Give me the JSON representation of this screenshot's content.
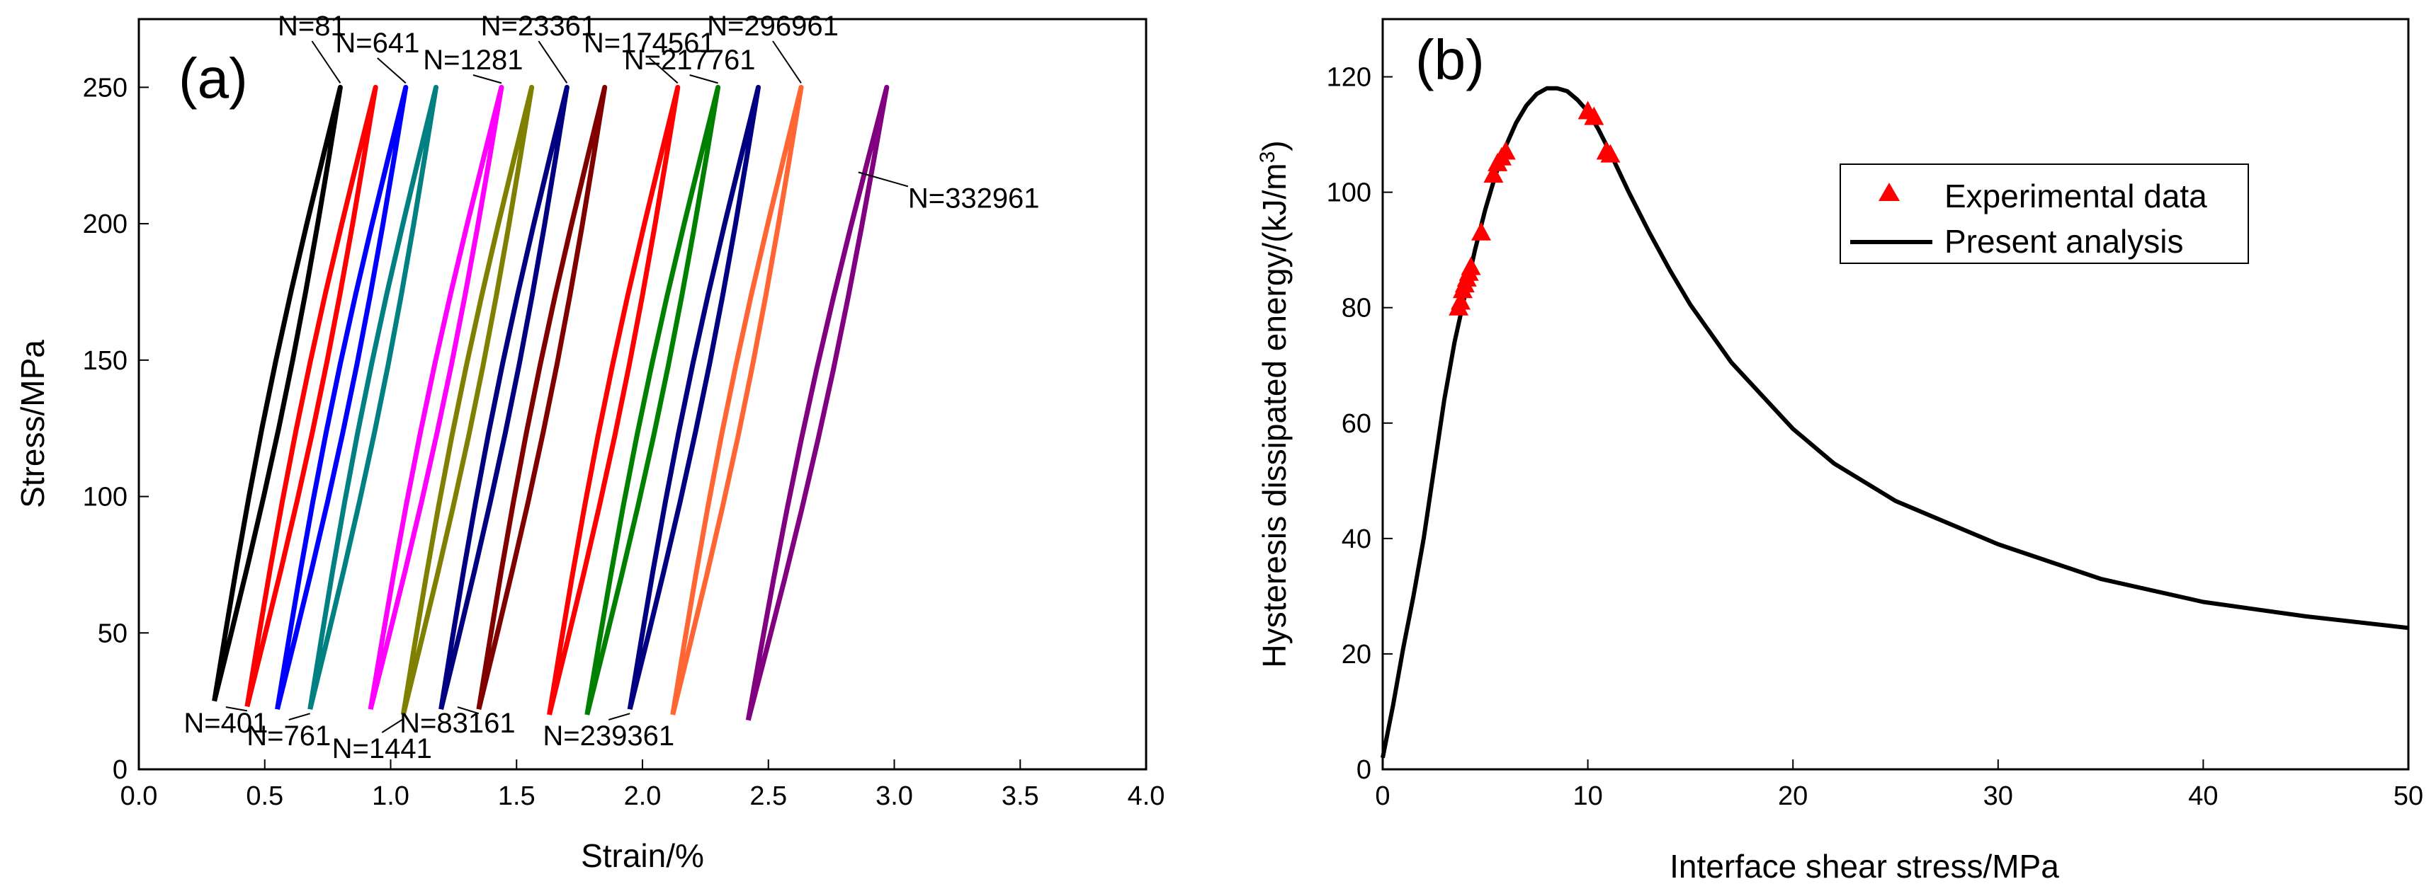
{
  "chart_data": [
    {
      "panel_label": "(a)",
      "type": "line",
      "xlabel": "Strain/%",
      "ylabel": "Stress/MPa",
      "xlim": [
        0.0,
        4.0
      ],
      "ylim": [
        0,
        275
      ],
      "xticks": [
        "0.0",
        "0.5",
        "1.0",
        "1.5",
        "2.0",
        "2.5",
        "3.0",
        "3.5",
        "4.0"
      ],
      "yticks": [
        "0",
        "50",
        "100",
        "150",
        "200",
        "250"
      ],
      "grid": false,
      "series": [
        {
          "name": "N=81",
          "color": "#000000",
          "label_side": "top",
          "x_low": 0.3,
          "x_high": 0.8,
          "y_low": 25,
          "y_high": 250
        },
        {
          "name": "N=401",
          "color": "#ff0000",
          "label_side": "bottom",
          "x_low": 0.43,
          "x_high": 0.94,
          "y_low": 23,
          "y_high": 250
        },
        {
          "name": "N=641",
          "color": "#0000ff",
          "label_side": "top",
          "x_low": 0.55,
          "x_high": 1.06,
          "y_low": 22,
          "y_high": 250
        },
        {
          "name": "N=761",
          "color": "#008080",
          "label_side": "bottom",
          "x_low": 0.68,
          "x_high": 1.18,
          "y_low": 22,
          "y_high": 250
        },
        {
          "name": "N=1281",
          "color": "#ff00ff",
          "label_side": "top",
          "x_low": 0.92,
          "x_high": 1.44,
          "y_low": 22,
          "y_high": 250
        },
        {
          "name": "N=1441",
          "color": "#808000",
          "label_side": "bottom",
          "x_low": 1.05,
          "x_high": 1.56,
          "y_low": 20,
          "y_high": 250
        },
        {
          "name": "N=23361",
          "color": "#000080",
          "label_side": "top",
          "x_low": 1.2,
          "x_high": 1.7,
          "y_low": 22,
          "y_high": 250
        },
        {
          "name": "N=83161",
          "color": "#800000",
          "label_side": "bottom",
          "x_low": 1.35,
          "x_high": 1.85,
          "y_low": 22,
          "y_high": 250
        },
        {
          "name": "N=174561",
          "color": "#ff0000",
          "label_side": "top",
          "x_low": 1.63,
          "x_high": 2.14,
          "y_low": 20,
          "y_high": 250
        },
        {
          "name": "N=217761",
          "color": "#008000",
          "label_side": "top",
          "x_low": 1.78,
          "x_high": 2.3,
          "y_low": 20,
          "y_high": 250
        },
        {
          "name": "N=239361",
          "color": "#000080",
          "label_side": "bottom",
          "x_low": 1.95,
          "x_high": 2.46,
          "y_low": 22,
          "y_high": 250
        },
        {
          "name": "N=296961",
          "color": "#ff6633",
          "label_side": "top",
          "x_low": 2.12,
          "x_high": 2.63,
          "y_low": 20,
          "y_high": 250
        },
        {
          "name": "N=332961",
          "color": "#800080",
          "label_side": "right",
          "x_low": 2.42,
          "x_high": 2.97,
          "y_low": 18,
          "y_high": 250
        }
      ]
    },
    {
      "panel_label": "(b)",
      "type": "line",
      "xlabel": "Interface shear stress/MPa",
      "ylabel": "Hysteresis dissipated energy/(kJ/m",
      "ylabel_superscript": "3",
      "ylabel_suffix": ")",
      "xlim": [
        0,
        50
      ],
      "ylim": [
        0,
        130
      ],
      "xticks": [
        "0",
        "10",
        "20",
        "30",
        "40",
        "50"
      ],
      "yticks": [
        "0",
        "20",
        "40",
        "60",
        "80",
        "100",
        "120"
      ],
      "grid": false,
      "legend_position": "top-right",
      "series": [
        {
          "name": "Experimental data",
          "type": "scatter",
          "marker": "triangle",
          "color": "#ff0000",
          "points": [
            [
              3.7,
              80
            ],
            [
              3.8,
              81
            ],
            [
              3.9,
              83
            ],
            [
              4.0,
              84
            ],
            [
              4.1,
              85
            ],
            [
              4.2,
              86
            ],
            [
              4.3,
              87
            ],
            [
              4.8,
              93
            ],
            [
              5.4,
              103
            ],
            [
              5.6,
              105
            ],
            [
              5.8,
              106
            ],
            [
              6.0,
              107
            ],
            [
              10.0,
              114
            ],
            [
              10.3,
              113
            ],
            [
              10.9,
              107
            ],
            [
              11.1,
              106.5
            ]
          ]
        },
        {
          "name": "Present analysis",
          "type": "line",
          "color": "#000000",
          "points": [
            [
              0,
              2
            ],
            [
              0.5,
              11
            ],
            [
              1,
              21
            ],
            [
              1.5,
              30
            ],
            [
              2,
              40
            ],
            [
              2.5,
              52
            ],
            [
              3,
              64
            ],
            [
              3.5,
              74
            ],
            [
              4,
              82
            ],
            [
              4.5,
              90
            ],
            [
              5,
              97
            ],
            [
              5.5,
              103
            ],
            [
              6,
              108
            ],
            [
              6.5,
              112
            ],
            [
              7,
              115
            ],
            [
              7.5,
              117
            ],
            [
              8,
              118
            ],
            [
              8.5,
              118
            ],
            [
              9,
              117.5
            ],
            [
              9.5,
              116
            ],
            [
              10,
              114
            ],
            [
              10.5,
              111
            ],
            [
              11,
              107.5
            ],
            [
              12,
              100
            ],
            [
              13,
              93
            ],
            [
              14,
              86.5
            ],
            [
              15,
              80.5
            ],
            [
              17,
              70.5
            ],
            [
              20,
              59
            ],
            [
              22,
              53
            ],
            [
              25,
              46.5
            ],
            [
              30,
              39
            ],
            [
              35,
              33
            ],
            [
              40,
              29
            ],
            [
              45,
              26.5
            ],
            [
              50,
              24.5
            ]
          ]
        }
      ]
    }
  ]
}
